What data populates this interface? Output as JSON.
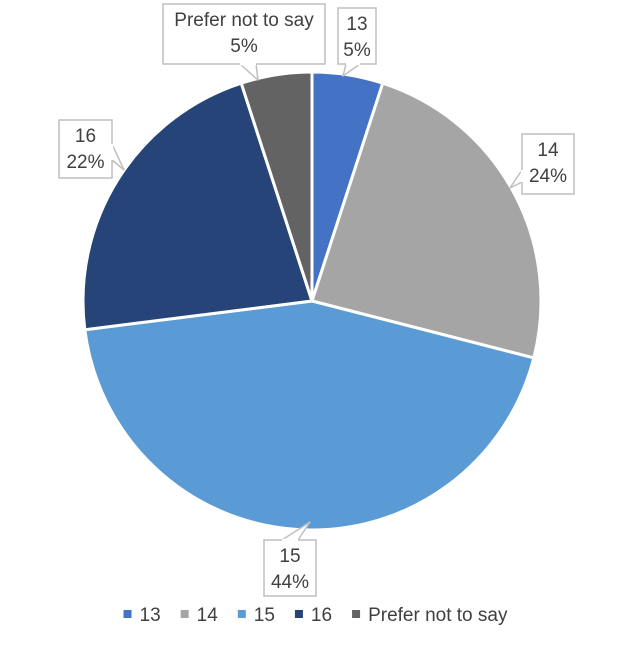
{
  "chart_data": {
    "type": "pie",
    "title": "",
    "categories": [
      "13",
      "14",
      "15",
      "16",
      "Prefer not to say"
    ],
    "values": [
      5,
      24,
      44,
      22,
      5
    ],
    "value_labels": [
      "5%",
      "24%",
      "44%",
      "22%",
      "5%"
    ],
    "colors": [
      "#4472C4",
      "#A5A5A5",
      "#5B9BD5",
      "#264478",
      "#636363"
    ],
    "legend_position": "bottom",
    "data_label_style": "callout boxes showing category and percentage"
  }
}
